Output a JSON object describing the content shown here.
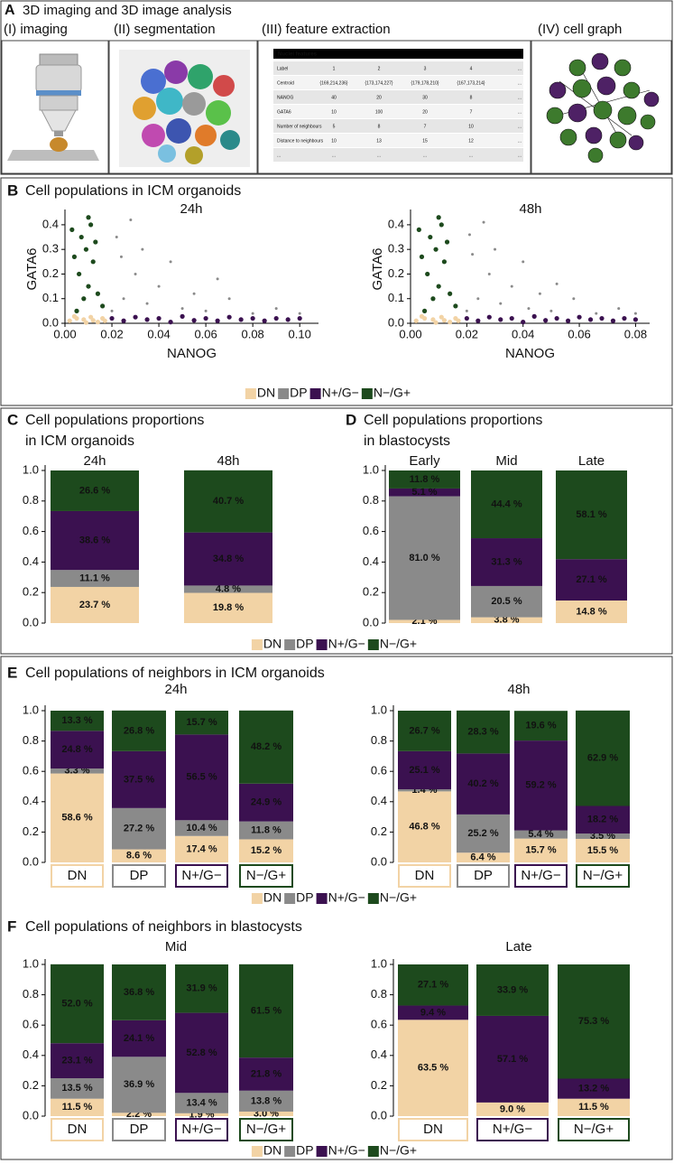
{
  "panels": [
    {
      "letter": "A",
      "title": [
        "3D imaging and 3D image analysis"
      ]
    },
    {
      "letter": "B",
      "title": [
        "Cell populations in ICM organoids"
      ]
    },
    {
      "letter": "C",
      "title": [
        "Cell populations proportions",
        "in ICM organoids"
      ]
    },
    {
      "letter": "D",
      "title": [
        "Cell populations proportions",
        "in blastocysts"
      ]
    },
    {
      "letter": "E",
      "title": [
        "Cell populations of neighbors in ICM organoids"
      ]
    },
    {
      "letter": "F",
      "title": [
        "Cell populations of neighbors in blastocysts"
      ]
    }
  ],
  "figure_a": {
    "steps": [
      "(I) imaging",
      "(II) segmentation",
      "(III) feature extraction",
      "(IV) cell graph"
    ],
    "table": {
      "title": "Nuclei features",
      "rows": [
        [
          "Label",
          "1",
          "2",
          "3",
          "4",
          "..."
        ],
        [
          "Centroid",
          "{169,214,236}",
          "{173,174,227}",
          "{179,178,210}",
          "{167,173,214}",
          "..."
        ],
        [
          "NANOG",
          "40",
          "20",
          "30",
          "8",
          "..."
        ],
        [
          "GATA6",
          "10",
          "100",
          "20",
          "7",
          "..."
        ],
        [
          "Number of neighbours",
          "5",
          "8",
          "7",
          "10",
          "..."
        ],
        [
          "Distance to neighbours",
          "10",
          "13",
          "15",
          "12",
          "..."
        ],
        [
          "...",
          "...",
          "...",
          "...",
          "...",
          "..."
        ]
      ]
    }
  },
  "chart_data": [
    {
      "type": "scatter",
      "title": "24h",
      "x_label": "NANOG",
      "y_label": "GATA6",
      "xlim": [
        0,
        0.108
      ],
      "ylim": [
        0,
        0.44
      ],
      "xticks": [
        {
          "value": 0,
          "label": "0.00"
        },
        {
          "value": 0.02,
          "label": "0.02"
        },
        {
          "value": 0.04,
          "label": "0.04"
        },
        {
          "value": 0.06,
          "label": "0.06"
        },
        {
          "value": 0.08,
          "label": "0.08"
        },
        {
          "value": 0.1,
          "label": "0.10"
        }
      ],
      "yticks": [
        {
          "value": 0,
          "label": "0.0"
        },
        0.1,
        0.2,
        0.3,
        0.4
      ],
      "series": [
        {
          "name": "DN",
          "color": "#f2d3a5",
          "x": [
            0.002,
            0.005,
            0.008,
            0.011,
            0.014,
            0.016,
            0.004,
            0.012,
            0.009,
            0.017
          ],
          "y": [
            0.01,
            0.02,
            0.015,
            0.025,
            0.005,
            0.02,
            0.028,
            0.012,
            0.003,
            0.01
          ]
        },
        {
          "name": "DP",
          "color": "#8a8a8a",
          "x": [
            0.02,
            0.025,
            0.03,
            0.022,
            0.035,
            0.04,
            0.028,
            0.05,
            0.045,
            0.06,
            0.07,
            0.08,
            0.065,
            0.1,
            0.033,
            0.055,
            0.09,
            0.024
          ],
          "y": [
            0.05,
            0.1,
            0.2,
            0.35,
            0.08,
            0.15,
            0.42,
            0.06,
            0.25,
            0.05,
            0.1,
            0.04,
            0.18,
            0.04,
            0.3,
            0.12,
            0.06,
            0.27
          ]
        },
        {
          "name": "N+/G−",
          "color": "#3b1150",
          "x": [
            0.02,
            0.025,
            0.03,
            0.035,
            0.04,
            0.045,
            0.05,
            0.055,
            0.06,
            0.065,
            0.07,
            0.075,
            0.08,
            0.085,
            0.09,
            0.095,
            0.1
          ],
          "y": [
            0.02,
            0.01,
            0.025,
            0.015,
            0.02,
            0.005,
            0.028,
            0.012,
            0.02,
            0.01,
            0.025,
            0.015,
            0.02,
            0.01,
            0.02,
            0.015,
            0.02
          ]
        },
        {
          "name": "N−/G+",
          "color": "#1d4a1d",
          "x": [
            0.005,
            0.008,
            0.01,
            0.006,
            0.012,
            0.009,
            0.007,
            0.011,
            0.014,
            0.004,
            0.013,
            0.01,
            0.016,
            0.003
          ],
          "y": [
            0.05,
            0.1,
            0.15,
            0.2,
            0.25,
            0.3,
            0.35,
            0.4,
            0.12,
            0.27,
            0.33,
            0.43,
            0.07,
            0.38
          ]
        }
      ]
    },
    {
      "type": "scatter",
      "title": "48h",
      "x_label": "NANOG",
      "y_label": "GATA6",
      "xlim": [
        0,
        0.085
      ],
      "ylim": [
        0,
        0.44
      ],
      "xticks": [
        {
          "value": 0,
          "label": "0.00"
        },
        {
          "value": 0.02,
          "label": "0.02"
        },
        {
          "value": 0.04,
          "label": "0.04"
        },
        {
          "value": 0.06,
          "label": "0.06"
        },
        {
          "value": 0.08,
          "label": "0.08"
        }
      ],
      "yticks": [
        {
          "value": 0,
          "label": "0.0"
        },
        0.1,
        0.2,
        0.3,
        0.4
      ],
      "series": [
        {
          "name": "DN",
          "color": "#f2d3a5",
          "x": [
            0.002,
            0.005,
            0.008,
            0.011,
            0.014,
            0.016,
            0.004,
            0.012,
            0.009,
            0.017
          ],
          "y": [
            0.01,
            0.02,
            0.015,
            0.025,
            0.005,
            0.02,
            0.028,
            0.012,
            0.003,
            0.01
          ]
        },
        {
          "name": "DP",
          "color": "#8a8a8a",
          "x": [
            0.02,
            0.024,
            0.028,
            0.021,
            0.032,
            0.036,
            0.026,
            0.042,
            0.04,
            0.05,
            0.058,
            0.066,
            0.052,
            0.08,
            0.03,
            0.046,
            0.074,
            0.022
          ],
          "y": [
            0.05,
            0.1,
            0.2,
            0.36,
            0.08,
            0.15,
            0.41,
            0.06,
            0.25,
            0.05,
            0.1,
            0.04,
            0.16,
            0.04,
            0.3,
            0.12,
            0.06,
            0.28
          ]
        },
        {
          "name": "N+/G−",
          "color": "#3b1150",
          "x": [
            0.02,
            0.024,
            0.028,
            0.032,
            0.036,
            0.04,
            0.044,
            0.048,
            0.052,
            0.056,
            0.06,
            0.064,
            0.068,
            0.072,
            0.076,
            0.08
          ],
          "y": [
            0.02,
            0.01,
            0.025,
            0.015,
            0.02,
            0.005,
            0.028,
            0.012,
            0.02,
            0.01,
            0.025,
            0.015,
            0.02,
            0.01,
            0.02,
            0.015
          ]
        },
        {
          "name": "N−/G+",
          "color": "#1d4a1d",
          "x": [
            0.005,
            0.008,
            0.01,
            0.006,
            0.012,
            0.009,
            0.007,
            0.011,
            0.014,
            0.004,
            0.013,
            0.01,
            0.016,
            0.003
          ],
          "y": [
            0.05,
            0.1,
            0.15,
            0.2,
            0.25,
            0.3,
            0.35,
            0.4,
            0.12,
            0.27,
            0.33,
            0.43,
            0.07,
            0.38
          ]
        }
      ]
    },
    {
      "type": "stacked_bar",
      "categories": [
        "24h",
        "48h"
      ],
      "ylim": [
        0,
        1
      ],
      "yticks": [
        {
          "value": 0,
          "label": "0.0"
        },
        0.2,
        0.4,
        0.6,
        0.8,
        {
          "value": 1,
          "label": "1.0"
        }
      ],
      "series": [
        {
          "name": "DN",
          "color": "#f2d3a5",
          "values": [
            0.237,
            0.198
          ],
          "value_labels": [
            "23.7 %",
            "19.8 %"
          ]
        },
        {
          "name": "DP",
          "color": "#8a8a8a",
          "values": [
            0.111,
            0.048
          ],
          "value_labels": [
            "11.1 %",
            "4.8 %"
          ]
        },
        {
          "name": "N+/G−",
          "color": "#3b1150",
          "values": [
            0.386,
            0.348
          ],
          "value_labels": [
            "38.6 %",
            "34.8 %"
          ]
        },
        {
          "name": "N−/G+",
          "color": "#1d4a1d",
          "values": [
            0.266,
            0.407
          ],
          "value_labels": [
            "26.6 %",
            "40.7 %"
          ]
        }
      ]
    },
    {
      "type": "stacked_bar",
      "categories": [
        "Early",
        "Mid",
        "Late"
      ],
      "ylim": [
        0,
        1
      ],
      "yticks": [
        {
          "value": 0,
          "label": "0.0"
        },
        0.2,
        0.4,
        0.6,
        0.8,
        {
          "value": 1,
          "label": "1.0"
        }
      ],
      "series": [
        {
          "name": "DN",
          "color": "#f2d3a5",
          "values": [
            0.021,
            0.038,
            0.148
          ],
          "value_labels": [
            "2.1 %",
            "3.8 %",
            "14.8 %"
          ]
        },
        {
          "name": "DP",
          "color": "#8a8a8a",
          "values": [
            0.81,
            0.205,
            0
          ],
          "value_labels": [
            "81.0 %",
            "20.5 %",
            null
          ]
        },
        {
          "name": "N+/G−",
          "color": "#3b1150",
          "values": [
            0.051,
            0.313,
            0.271
          ],
          "value_labels": [
            "5.1 %",
            "31.3 %",
            "27.1 %"
          ]
        },
        {
          "name": "N−/G+",
          "color": "#1d4a1d",
          "values": [
            0.118,
            0.444,
            0.581
          ],
          "value_labels": [
            "11.8 %",
            "44.4 %",
            "58.1 %"
          ]
        }
      ]
    },
    {
      "type": "stacked_bar",
      "title": "24h",
      "category_box": true,
      "categories": [
        "DN",
        "DP",
        "N+/G−",
        "N−/G+"
      ],
      "ylim": [
        0,
        1
      ],
      "yticks": [
        {
          "value": 0,
          "label": "0.0"
        },
        0.2,
        0.4,
        0.6,
        0.8,
        {
          "value": 1,
          "label": "1.0"
        }
      ],
      "series": [
        {
          "name": "DN",
          "color": "#f2d3a5",
          "values": [
            0.586,
            0.086,
            0.174,
            0.152
          ],
          "value_labels": [
            "58.6 %",
            "8.6 %",
            "17.4 %",
            "15.2 %"
          ]
        },
        {
          "name": "DP",
          "color": "#8a8a8a",
          "values": [
            0.033,
            0.272,
            0.104,
            0.118
          ],
          "value_labels": [
            "3.3 %",
            "27.2 %",
            "10.4 %",
            "11.8 %"
          ]
        },
        {
          "name": "N+/G−",
          "color": "#3b1150",
          "values": [
            0.248,
            0.375,
            0.565,
            0.249
          ],
          "value_labels": [
            "24.8 %",
            "37.5 %",
            "56.5 %",
            "24.9 %"
          ]
        },
        {
          "name": "N−/G+",
          "color": "#1d4a1d",
          "values": [
            0.133,
            0.268,
            0.157,
            0.482
          ],
          "value_labels": [
            "13.3 %",
            "26.8 %",
            "15.7 %",
            "48.2 %"
          ]
        }
      ]
    },
    {
      "type": "stacked_bar",
      "title": "48h",
      "category_box": true,
      "categories": [
        "DN",
        "DP",
        "N+/G−",
        "N−/G+"
      ],
      "ylim": [
        0,
        1
      ],
      "yticks": [
        {
          "value": 0,
          "label": "0.0"
        },
        0.2,
        0.4,
        0.6,
        0.8,
        {
          "value": 1,
          "label": "1.0"
        }
      ],
      "series": [
        {
          "name": "DN",
          "color": "#f2d3a5",
          "values": [
            0.468,
            0.064,
            0.157,
            0.155
          ],
          "value_labels": [
            "46.8 %",
            "6.4 %",
            "15.7 %",
            "15.5 %"
          ]
        },
        {
          "name": "DP",
          "color": "#8a8a8a",
          "values": [
            0.014,
            0.252,
            0.054,
            0.035
          ],
          "value_labels": [
            "1.4 %",
            "25.2 %",
            "5.4 %",
            "3.5 %"
          ]
        },
        {
          "name": "N+/G−",
          "color": "#3b1150",
          "values": [
            0.251,
            0.402,
            0.592,
            0.182
          ],
          "value_labels": [
            "25.1 %",
            "40.2 %",
            "59.2 %",
            "18.2 %"
          ]
        },
        {
          "name": "N−/G+",
          "color": "#1d4a1d",
          "values": [
            0.267,
            0.283,
            0.196,
            0.629
          ],
          "value_labels": [
            "26.7 %",
            "28.3 %",
            "19.6 %",
            "62.9 %"
          ]
        }
      ]
    },
    {
      "type": "stacked_bar",
      "title": "Mid",
      "category_box": true,
      "categories": [
        "DN",
        "DP",
        "N+/G−",
        "N−/G+"
      ],
      "ylim": [
        0,
        1
      ],
      "yticks": [
        {
          "value": 0,
          "label": "0.0"
        },
        0.2,
        0.4,
        0.6,
        0.8,
        {
          "value": 1,
          "label": "1.0"
        }
      ],
      "series": [
        {
          "name": "DN",
          "color": "#f2d3a5",
          "values": [
            0.115,
            0.022,
            0.019,
            0.03
          ],
          "value_labels": [
            "11.5 %",
            "2.2 %",
            "1.9 %",
            "3.0 %"
          ]
        },
        {
          "name": "DP",
          "color": "#8a8a8a",
          "values": [
            0.135,
            0.369,
            0.134,
            0.138
          ],
          "value_labels": [
            "13.5 %",
            "36.9 %",
            "13.4 %",
            "13.8 %"
          ]
        },
        {
          "name": "N+/G−",
          "color": "#3b1150",
          "values": [
            0.231,
            0.241,
            0.528,
            0.218
          ],
          "value_labels": [
            "23.1 %",
            "24.1 %",
            "52.8 %",
            "21.8 %"
          ]
        },
        {
          "name": "N−/G+",
          "color": "#1d4a1d",
          "values": [
            0.52,
            0.368,
            0.319,
            0.615
          ],
          "value_labels": [
            "52.0 %",
            "36.8 %",
            "31.9 %",
            "61.5 %"
          ]
        }
      ]
    },
    {
      "type": "stacked_bar",
      "title": "Late",
      "category_box": true,
      "categories": [
        "DN",
        "N+/G−",
        "N−/G+"
      ],
      "ylim": [
        0,
        1
      ],
      "yticks": [
        {
          "value": 0,
          "label": "0.0"
        },
        0.2,
        0.4,
        0.6,
        0.8,
        {
          "value": 1,
          "label": "1.0"
        }
      ],
      "series": [
        {
          "name": "DN",
          "color": "#f2d3a5",
          "values": [
            0.635,
            0.09,
            0.115
          ],
          "value_labels": [
            "63.5 %",
            "9.0 %",
            "11.5 %"
          ]
        },
        {
          "name": "DP",
          "color": "#8a8a8a",
          "values": [
            0,
            0,
            0
          ],
          "value_labels": [
            null,
            null,
            null
          ]
        },
        {
          "name": "N+/G−",
          "color": "#3b1150",
          "values": [
            0.094,
            0.571,
            0.132
          ],
          "value_labels": [
            "9.4 %",
            "57.1 %",
            "13.2 %"
          ]
        },
        {
          "name": "N−/G+",
          "color": "#1d4a1d",
          "values": [
            0.271,
            0.339,
            0.753
          ],
          "value_labels": [
            "27.1 %",
            "33.9 %",
            "75.3 %"
          ]
        }
      ]
    }
  ]
}
